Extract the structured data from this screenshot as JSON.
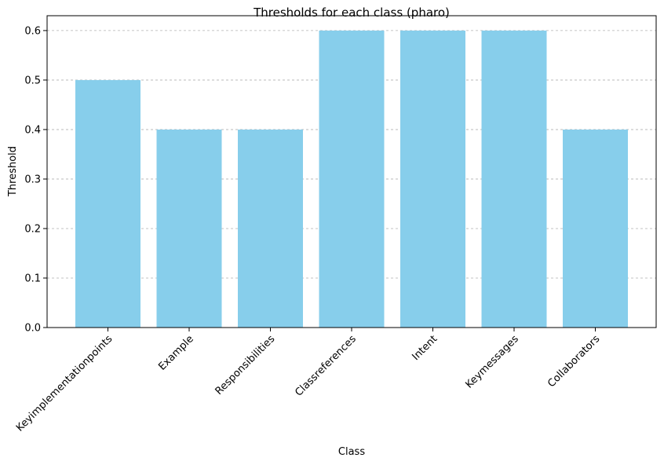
{
  "chart_data": {
    "type": "bar",
    "title": "Thresholds for each class (pharo)",
    "xlabel": "Class",
    "ylabel": "Threshold",
    "categories": [
      "Keyimplementationpoints",
      "Example",
      "Responsibilities",
      "Classreferences",
      "Intent",
      "Keymessages",
      "Collaborators"
    ],
    "values": [
      0.5,
      0.4,
      0.4,
      0.6,
      0.6,
      0.6,
      0.4
    ],
    "ylim": [
      0,
      0.63
    ],
    "yticks": [
      0.0,
      0.1,
      0.2,
      0.3,
      0.4,
      0.5,
      0.6
    ],
    "ytick_labels": [
      "0.0",
      "0.1",
      "0.2",
      "0.3",
      "0.4",
      "0.5",
      "0.6"
    ],
    "grid": "y-dashed",
    "bar_color": "#87CEEB",
    "legend": "none"
  }
}
